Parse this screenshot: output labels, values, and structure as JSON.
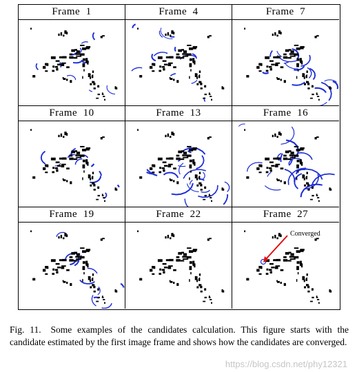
{
  "figure": {
    "panels": [
      {
        "title": "Frame  1",
        "candidate_spread": 0.35
      },
      {
        "title": "Frame  4",
        "candidate_spread": 0.5
      },
      {
        "title": "Frame  7",
        "candidate_spread": 0.75
      },
      {
        "title": "Frame  10",
        "candidate_spread": 0.4
      },
      {
        "title": "Frame  13",
        "candidate_spread": 1.0
      },
      {
        "title": "Frame  16",
        "candidate_spread": 0.9
      },
      {
        "title": "Frame  19",
        "candidate_spread": 0.45
      },
      {
        "title": "Frame  22",
        "candidate_spread": 0.0
      },
      {
        "title": "Frame  27",
        "candidate_spread": 0.0
      }
    ],
    "annotation": "Converged",
    "colors": {
      "landmark": "#000000",
      "candidates": "#1f2fd6",
      "converged_arrow": "#e01010",
      "border": "#000000"
    }
  },
  "caption": {
    "label": "Fig. 11.",
    "text": "Some examples of the candidates calculation. This figure starts with the candidate estimated by the first image frame and shows how the candidates are converged."
  },
  "watermark": "https://blog.csdn.net/phy12321"
}
